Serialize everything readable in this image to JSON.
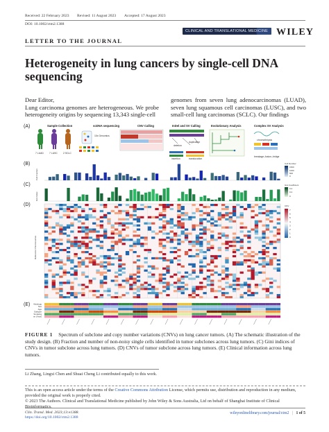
{
  "header": {
    "received": "Received: 22 February 2023",
    "revised": "Revised: 11 August 2023",
    "accepted": "Accepted: 17 August 2023",
    "doi": "DOI: 10.1002/ctm2.1388",
    "journal_banner": "CLINICAL AND TRANSLATIONAL MEDICINE",
    "publisher": "WILEY"
  },
  "section_label": "LETTER TO THE JOURNAL",
  "title": "Heterogeneity in lung cancers by single-cell DNA sequencing",
  "body": {
    "left": "Dear Editor,\nLung carcinoma genomes are heterogeneous. We probe heterogeneity origins by sequencing 13,343 single-cell",
    "right": "genomes from seven lung adenocarcinomas (LUAD), seven lung squamous cell carcinomas (LUSC), and two small-cell lung carcinomas (SCLC). Our findings"
  },
  "figure": {
    "panel_letters": [
      "(A)",
      "(B)",
      "(C)",
      "(D)",
      "(E)"
    ],
    "panelA": {
      "steps": [
        "Sample Collection",
        "scDNA sequencing",
        "CNV Calling",
        "InDel and SV Calling",
        "Evolutionary Analysis",
        "Complex SV Analysis"
      ],
      "cohorts": [
        "7 LUAD",
        "7 LUSC",
        "2 SCLC"
      ],
      "genome_label": "10x Genomics",
      "sv_labels": [
        "deletion",
        "duplication",
        "insertion",
        "translocation"
      ],
      "complex_labels": [
        "chromothripsis",
        "breakage–fusion–bridge"
      ]
    },
    "panelB": {
      "legend_title": "Cell Number",
      "legend_ticks": [
        "1500",
        "1000",
        "500",
        "0"
      ],
      "ylabel": "Cell Fraction"
    },
    "panelC": {
      "legend_title": "Gini Coefficient",
      "legend_ticks": [
        "0.4",
        "0.2",
        "0"
      ],
      "ylabel": "Gini Index"
    },
    "panelD": {
      "legend_title": "CNV",
      "legend_ticks": [
        "7",
        "6",
        "5",
        "4",
        "3",
        "2",
        "1",
        "0"
      ],
      "ylabel": "Reference Chromosomes"
    },
    "panelE": {
      "rows": [
        "Histology",
        "Sex",
        "Age",
        "Stage Subtype",
        "Smoking",
        "Gun Smoking Time (Year)"
      ]
    },
    "colors": {
      "red": "#d7301f",
      "blue": "#2c6fb5",
      "teal": "#2a9d8f",
      "green": "#2e8b3a",
      "yellow": "#f2c12e"
    }
  },
  "caption": {
    "label": "FIGURE 1",
    "text": "Spectrum of subclone and copy number variations (CNVs) on lung cancer tumors. (A) The schematic illustration of the study design. (B) Fraction and number of non-noisy single cells identified in tumor subclones across lung tumors. (C) Gini indices of CNVs in tumor subclone across lung tumors. (D) CNVs of tumor subclone across lung tumors. (E) Clinical information across lung tumors."
  },
  "footnotes": {
    "contrib": "Li Zhang, Lingxi Chen and Shuai Cheng Li contributed equally to this work.",
    "license_pre": "This is an open access article under the terms of the ",
    "license_link": "Creative Commons Attribution",
    "license_post": " License, which permits use, distribution and reproduction in any medium, provided the original work is properly cited.",
    "copyright": "© 2023 The Authors. Clinical and Translational Medicine published by John Wiley & Sons Australia, Ltd on behalf of Shanghai Institute of Clinical Bioinformatics."
  },
  "footer": {
    "citation": "Clin. Transl. Med. 2023;13:e1388.",
    "doi_link": "https://doi.org/10.1002/ctm2.1388",
    "site": "wileyonlinelibrary.com/journal/ctm2",
    "page": "1 of 5"
  }
}
